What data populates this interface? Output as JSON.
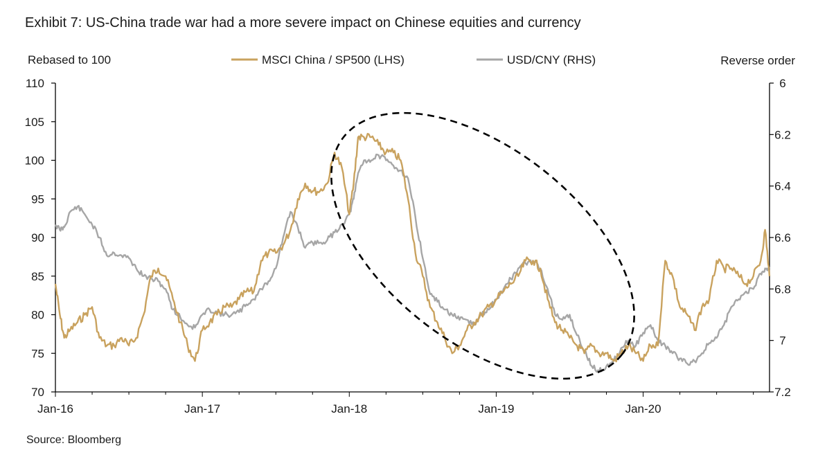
{
  "title": "Exhibit 7: US-China trade war had a more severe impact on Chinese equities and currency",
  "source": "Source: Bloomberg",
  "chart_data": {
    "type": "line",
    "left_axis_label": "Rebased to 100",
    "right_axis_label": "Reverse order",
    "left_ticks": [
      "110",
      "105",
      "100",
      "95",
      "90",
      "85",
      "80",
      "75",
      "70"
    ],
    "right_ticks": [
      "6",
      "6.2",
      "6.4",
      "6.6",
      "6.8",
      "7",
      "7.2"
    ],
    "x_ticks": [
      "Jan-16",
      "Jan-17",
      "Jan-18",
      "Jan-19",
      "Jan-20"
    ],
    "left_ylim": [
      70,
      110
    ],
    "right_ylim_reversed": [
      6.0,
      7.2
    ],
    "x_range_years": [
      2016.0,
      2020.86
    ],
    "series": [
      {
        "name": "MSCI China / SP500 (LHS)",
        "axis": "left",
        "color": "#C9A25E",
        "x": [
          2016.0,
          2016.03,
          2016.06,
          2016.1,
          2016.15,
          2016.2,
          2016.25,
          2016.3,
          2016.35,
          2016.4,
          2016.45,
          2016.5,
          2016.55,
          2016.6,
          2016.65,
          2016.7,
          2016.75,
          2016.8,
          2016.85,
          2016.9,
          2016.95,
          2017.0,
          2017.05,
          2017.1,
          2017.15,
          2017.2,
          2017.25,
          2017.3,
          2017.35,
          2017.4,
          2017.45,
          2017.5,
          2017.55,
          2017.6,
          2017.65,
          2017.7,
          2017.75,
          2017.8,
          2017.85,
          2017.9,
          2017.95,
          2018.0,
          2018.03,
          2018.06,
          2018.1,
          2018.15,
          2018.2,
          2018.25,
          2018.3,
          2018.35,
          2018.4,
          2018.45,
          2018.5,
          2018.55,
          2018.6,
          2018.65,
          2018.7,
          2018.75,
          2018.8,
          2018.85,
          2018.9,
          2018.95,
          2019.0,
          2019.05,
          2019.1,
          2019.15,
          2019.2,
          2019.25,
          2019.3,
          2019.35,
          2019.4,
          2019.45,
          2019.5,
          2019.55,
          2019.6,
          2019.65,
          2019.7,
          2019.75,
          2019.8,
          2019.85,
          2019.9,
          2019.95,
          2020.0,
          2020.05,
          2020.1,
          2020.15,
          2020.2,
          2020.25,
          2020.3,
          2020.35,
          2020.4,
          2020.45,
          2020.5,
          2020.55,
          2020.6,
          2020.65,
          2020.7,
          2020.75,
          2020.8,
          2020.83,
          2020.86
        ],
        "values": [
          84,
          80,
          77,
          78,
          79,
          80,
          81,
          77,
          76,
          76,
          77,
          76,
          77,
          80,
          85,
          86,
          85,
          82,
          79,
          76,
          74,
          78,
          79,
          80,
          81,
          81,
          82,
          83,
          83,
          87,
          88,
          88,
          89,
          91,
          95,
          97,
          96,
          96,
          97,
          101,
          99,
          93,
          97,
          103,
          103,
          103,
          102,
          101,
          101,
          100,
          95,
          88,
          85,
          81,
          79,
          77,
          75,
          76,
          78,
          79,
          80,
          81,
          82,
          83,
          84,
          85,
          87,
          87,
          86,
          82,
          79,
          78,
          77,
          76,
          75,
          76,
          75,
          75,
          74,
          75,
          76,
          75,
          74,
          76,
          76,
          87,
          85,
          81,
          80,
          78,
          81,
          82,
          87,
          86,
          86,
          85,
          84,
          85,
          87,
          91,
          85
        ]
      },
      {
        "name": "USD/CNY (RHS)",
        "axis": "right",
        "color": "#A6A6A6",
        "x": [
          2016.0,
          2016.03,
          2016.06,
          2016.1,
          2016.15,
          2016.2,
          2016.25,
          2016.3,
          2016.35,
          2016.4,
          2016.45,
          2016.5,
          2016.55,
          2016.6,
          2016.65,
          2016.7,
          2016.75,
          2016.8,
          2016.85,
          2016.9,
          2016.95,
          2017.0,
          2017.05,
          2017.1,
          2017.15,
          2017.2,
          2017.25,
          2017.3,
          2017.35,
          2017.4,
          2017.45,
          2017.5,
          2017.55,
          2017.6,
          2017.65,
          2017.7,
          2017.75,
          2017.8,
          2017.85,
          2017.9,
          2017.95,
          2018.0,
          2018.03,
          2018.06,
          2018.1,
          2018.15,
          2018.2,
          2018.25,
          2018.3,
          2018.35,
          2018.4,
          2018.45,
          2018.5,
          2018.55,
          2018.6,
          2018.65,
          2018.7,
          2018.75,
          2018.8,
          2018.85,
          2018.9,
          2018.95,
          2019.0,
          2019.05,
          2019.1,
          2019.15,
          2019.2,
          2019.25,
          2019.3,
          2019.35,
          2019.4,
          2019.45,
          2019.5,
          2019.55,
          2019.6,
          2019.65,
          2019.7,
          2019.75,
          2019.8,
          2019.85,
          2019.9,
          2019.95,
          2020.0,
          2020.05,
          2020.1,
          2020.15,
          2020.2,
          2020.25,
          2020.3,
          2020.35,
          2020.4,
          2020.45,
          2020.5,
          2020.55,
          2020.6,
          2020.65,
          2020.7,
          2020.75,
          2020.8,
          2020.83,
          2020.86
        ],
        "values": [
          6.55,
          6.57,
          6.56,
          6.5,
          6.48,
          6.51,
          6.55,
          6.6,
          6.67,
          6.66,
          6.67,
          6.68,
          6.72,
          6.75,
          6.76,
          6.77,
          6.8,
          6.88,
          6.91,
          6.94,
          6.95,
          6.9,
          6.88,
          6.89,
          6.9,
          6.9,
          6.89,
          6.86,
          6.84,
          6.8,
          6.77,
          6.72,
          6.6,
          6.5,
          6.56,
          6.64,
          6.62,
          6.62,
          6.61,
          6.58,
          6.55,
          6.51,
          6.45,
          6.35,
          6.3,
          6.3,
          6.28,
          6.3,
          6.32,
          6.34,
          6.37,
          6.52,
          6.68,
          6.82,
          6.85,
          6.88,
          6.9,
          6.92,
          6.92,
          6.94,
          6.9,
          6.88,
          6.84,
          6.8,
          6.76,
          6.72,
          6.7,
          6.69,
          6.72,
          6.8,
          6.9,
          6.92,
          6.9,
          6.98,
          7.04,
          7.1,
          7.12,
          7.1,
          7.08,
          7.03,
          7.0,
          7.02,
          6.97,
          6.94,
          7.0,
          7.02,
          7.05,
          7.07,
          7.09,
          7.08,
          7.05,
          7.01,
          6.99,
          6.94,
          6.87,
          6.84,
          6.81,
          6.8,
          6.74,
          6.72,
          6.72
        ]
      }
    ]
  }
}
